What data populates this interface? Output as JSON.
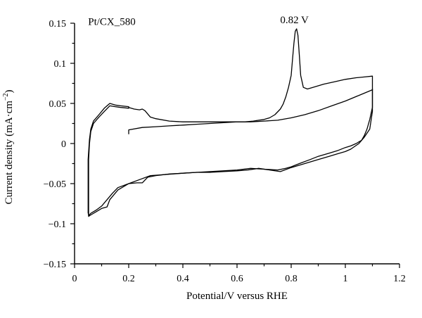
{
  "chart_data": {
    "type": "line",
    "title": "",
    "xlabel": "Potential/V versus RHE",
    "ylabel": "Current density (mA·cm",
    "ylabel_sup": "−2",
    "ylabel_end": ")",
    "xlim": [
      0,
      1.2
    ],
    "ylim": [
      -0.15,
      0.15
    ],
    "x_ticks": [
      0,
      0.2,
      0.4,
      0.6,
      0.8,
      1.0,
      1.2
    ],
    "x_tick_labels": [
      "0",
      "0.2",
      "0.4",
      "0.6",
      "0.8",
      "1",
      "1.2"
    ],
    "y_ticks": [
      -0.15,
      -0.1,
      -0.05,
      0,
      0.05,
      0.1,
      0.15
    ],
    "y_tick_labels": [
      "−0.15",
      "−0.1",
      "−0.05",
      "0",
      "0.05",
      "0.1",
      "0.15"
    ],
    "grid": false,
    "annotations": [
      {
        "text": "Pt/CX_580",
        "x": 0.05,
        "y": 0.148
      },
      {
        "text": "0.82 V",
        "x": 0.812,
        "y": 0.15
      }
    ],
    "series": [
      {
        "x": [
          0.2,
          0.2,
          0.25,
          0.3,
          0.35,
          0.4,
          0.45,
          0.5,
          0.55,
          0.6,
          0.65,
          0.7,
          0.75,
          0.8,
          0.85,
          0.9,
          0.95,
          1.0,
          1.05,
          1.1
        ],
        "y": [
          0.012,
          0.017,
          0.02,
          0.021,
          0.022,
          0.023,
          0.024,
          0.025,
          0.026,
          0.027,
          0.027,
          0.028,
          0.029,
          0.032,
          0.036,
          0.041,
          0.047,
          0.053,
          0.06,
          0.067
        ]
      },
      {
        "x": [
          1.1,
          1.1,
          1.09,
          1.07,
          1.05,
          1.02,
          1.0,
          0.97,
          0.94,
          0.9,
          0.85,
          0.8,
          0.76,
          0.72,
          0.68,
          0.64,
          0.6,
          0.55,
          0.5,
          0.45,
          0.4,
          0.35,
          0.3,
          0.27,
          0.25,
          0.23,
          0.2,
          0.16,
          0.13,
          0.12,
          0.1,
          0.08,
          0.06,
          0.055,
          0.052
        ],
        "y": [
          0.068,
          0.04,
          0.018,
          0.008,
          0.0,
          -0.007,
          -0.01,
          -0.013,
          -0.016,
          -0.02,
          -0.025,
          -0.03,
          -0.035,
          -0.033,
          -0.031,
          -0.033,
          -0.034,
          -0.035,
          -0.036,
          -0.036,
          -0.037,
          -0.038,
          -0.04,
          -0.042,
          -0.049,
          -0.049,
          -0.05,
          -0.058,
          -0.07,
          -0.079,
          -0.081,
          -0.085,
          -0.089,
          -0.09,
          -0.091
        ]
      },
      {
        "x": [
          0.052,
          0.052,
          0.055,
          0.06,
          0.07,
          0.09,
          0.11,
          0.13,
          0.15,
          0.17,
          0.2,
          0.2,
          0.17,
          0.15,
          0.13,
          0.11,
          0.09,
          0.07,
          0.06,
          0.055,
          0.05,
          0.05
        ],
        "y": [
          -0.09,
          -0.02,
          0.0,
          0.015,
          0.025,
          0.033,
          0.04,
          0.047,
          0.046,
          0.045,
          0.044,
          0.046,
          0.047,
          0.048,
          0.05,
          0.044,
          0.036,
          0.028,
          0.018,
          0.005,
          -0.02,
          -0.086
        ]
      },
      {
        "x": [
          0.05,
          0.052,
          0.06,
          0.08,
          0.1,
          0.12,
          0.14,
          0.16,
          0.2,
          0.24,
          0.28,
          0.32,
          0.36,
          0.4,
          0.45,
          0.5,
          0.55,
          0.6,
          0.65,
          0.7,
          0.75,
          0.78,
          0.8,
          0.83,
          0.87,
          0.9,
          0.94,
          0.97,
          1.0,
          1.02,
          1.04,
          1.06,
          1.07,
          1.08,
          1.09,
          1.1,
          1.1
        ],
        "y": [
          -0.086,
          -0.09,
          -0.087,
          -0.083,
          -0.078,
          -0.07,
          -0.062,
          -0.055,
          -0.05,
          -0.045,
          -0.04,
          -0.039,
          -0.038,
          -0.037,
          -0.036,
          -0.035,
          -0.034,
          -0.033,
          -0.031,
          -0.032,
          -0.033,
          -0.031,
          -0.029,
          -0.025,
          -0.02,
          -0.016,
          -0.012,
          -0.009,
          -0.005,
          -0.003,
          0.0,
          0.004,
          0.01,
          0.018,
          0.03,
          0.045,
          0.068
        ]
      },
      {
        "x": [
          1.1,
          1.1,
          1.07,
          1.04,
          1.0,
          0.96,
          0.92,
          0.88,
          0.86,
          0.845,
          0.835,
          0.83,
          0.825,
          0.82,
          0.815,
          0.81,
          0.805,
          0.8,
          0.79,
          0.78,
          0.77,
          0.76,
          0.74,
          0.72,
          0.7,
          0.68,
          0.66,
          0.63,
          0.6,
          0.56,
          0.5,
          0.45,
          0.4,
          0.35,
          0.3,
          0.28,
          0.26,
          0.25,
          0.24,
          0.22,
          0.2
        ],
        "y": [
          0.068,
          0.084,
          0.083,
          0.082,
          0.08,
          0.077,
          0.074,
          0.07,
          0.068,
          0.07,
          0.085,
          0.11,
          0.135,
          0.143,
          0.14,
          0.125,
          0.105,
          0.085,
          0.07,
          0.058,
          0.049,
          0.043,
          0.036,
          0.032,
          0.03,
          0.029,
          0.028,
          0.027,
          0.027,
          0.027,
          0.027,
          0.027,
          0.027,
          0.028,
          0.031,
          0.033,
          0.041,
          0.043,
          0.042,
          0.043,
          0.045
        ]
      }
    ]
  }
}
